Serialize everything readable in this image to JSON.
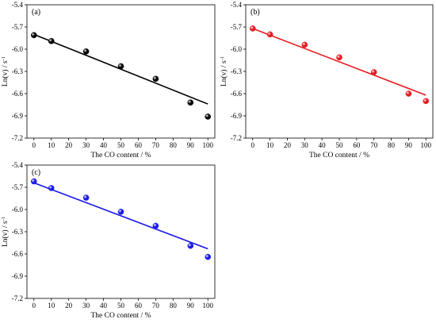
{
  "chart_data": [
    {
      "type": "scatter",
      "panel_label": "(a)",
      "xlabel": "The CO content  / %",
      "ylabel": "Ln(v) / s",
      "ylabel_superscript": "-1",
      "xlim": [
        -4,
        104
      ],
      "ylim": [
        -7.2,
        -5.4
      ],
      "xticks": [
        "0",
        "10",
        "20",
        "30",
        "40",
        "50",
        "60",
        "70",
        "80",
        "90",
        "100"
      ],
      "yticks": [
        "-5.4",
        "-5.7",
        "-6.0",
        "-6.3",
        "-6.6",
        "-6.9",
        "-7.2"
      ],
      "color": "#000000",
      "grid": false,
      "points": [
        {
          "x": 0,
          "y": -5.81
        },
        {
          "x": 10,
          "y": -5.89
        },
        {
          "x": 30,
          "y": -6.03
        },
        {
          "x": 50,
          "y": -6.23
        },
        {
          "x": 70,
          "y": -6.4
        },
        {
          "x": 90,
          "y": -6.72
        },
        {
          "x": 100,
          "y": -6.91
        }
      ],
      "fit_line": {
        "x": [
          0,
          100
        ],
        "y": [
          -5.8,
          -6.74
        ]
      }
    },
    {
      "type": "scatter",
      "panel_label": "(b)",
      "xlabel": "The CO content  / %",
      "ylabel": "Ln(v) / s",
      "ylabel_superscript": "-1",
      "xlim": [
        -4,
        104
      ],
      "ylim": [
        -7.2,
        -5.4
      ],
      "xticks": [
        "0",
        "10",
        "20",
        "30",
        "40",
        "50",
        "60",
        "70",
        "80",
        "90",
        "100"
      ],
      "yticks": [
        "-5.4",
        "-5.7",
        "-6.0",
        "-6.3",
        "-6.6",
        "-6.9",
        "-7.2"
      ],
      "color": "#e8191f",
      "grid": false,
      "points": [
        {
          "x": 0,
          "y": -5.72
        },
        {
          "x": 10,
          "y": -5.8
        },
        {
          "x": 30,
          "y": -5.94
        },
        {
          "x": 50,
          "y": -6.11
        },
        {
          "x": 70,
          "y": -6.31
        },
        {
          "x": 90,
          "y": -6.6
        },
        {
          "x": 100,
          "y": -6.7
        }
      ],
      "fit_line": {
        "x": [
          0,
          100
        ],
        "y": [
          -5.72,
          -6.62
        ]
      }
    },
    {
      "type": "scatter",
      "panel_label": "(c)",
      "xlabel": "The CO content  / %",
      "ylabel": "Ln(v) / s",
      "ylabel_superscript": "-1",
      "xlim": [
        -4,
        104
      ],
      "ylim": [
        -7.2,
        -5.4
      ],
      "xticks": [
        "0",
        "10",
        "20",
        "30",
        "40",
        "50",
        "60",
        "70",
        "80",
        "90",
        "100"
      ],
      "yticks": [
        "-5.4",
        "-5.7",
        "-6.0",
        "-6.3",
        "-6.6",
        "-6.9",
        "-7.2"
      ],
      "color": "#1a1ae6",
      "grid": false,
      "points": [
        {
          "x": 0,
          "y": -5.62
        },
        {
          "x": 10,
          "y": -5.71
        },
        {
          "x": 30,
          "y": -5.84
        },
        {
          "x": 50,
          "y": -6.03
        },
        {
          "x": 70,
          "y": -6.22
        },
        {
          "x": 90,
          "y": -6.49
        },
        {
          "x": 100,
          "y": -6.64
        }
      ],
      "fit_line": {
        "x": [
          0,
          100
        ],
        "y": [
          -5.64,
          -6.53
        ]
      }
    }
  ]
}
